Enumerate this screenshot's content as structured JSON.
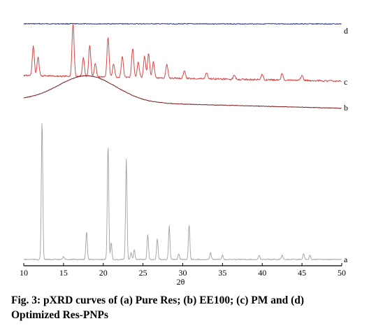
{
  "chart_data": {
    "type": "line",
    "title": "",
    "xlabel": "2θ",
    "ylabel": "",
    "xlim": [
      10,
      50
    ],
    "xticks": [
      10,
      15,
      20,
      25,
      30,
      35,
      40,
      45,
      50
    ],
    "grid": false,
    "legend": "none",
    "series": [
      {
        "name": "d",
        "color": "#27318f",
        "kind": "flat",
        "level": 0.97,
        "peaks": []
      },
      {
        "name": "c",
        "color": "#d24a4a",
        "kind": "crystalline",
        "level": 0.8,
        "peaks": [
          [
            11.2,
            0.55
          ],
          [
            11.8,
            0.35
          ],
          [
            16.2,
            1.0
          ],
          [
            17.5,
            0.35
          ],
          [
            18.3,
            0.6
          ],
          [
            19.0,
            0.25
          ],
          [
            20.6,
            0.75
          ],
          [
            21.3,
            0.25
          ],
          [
            22.4,
            0.4
          ],
          [
            23.7,
            0.55
          ],
          [
            24.4,
            0.3
          ],
          [
            25.2,
            0.4
          ],
          [
            25.7,
            0.45
          ],
          [
            26.3,
            0.3
          ],
          [
            28.0,
            0.25
          ],
          [
            30.2,
            0.15
          ],
          [
            33.0,
            0.12
          ],
          [
            36.5,
            0.08
          ],
          [
            40.0,
            0.1
          ],
          [
            42.5,
            0.12
          ],
          [
            45.0,
            0.1
          ]
        ]
      },
      {
        "name": "b",
        "color": "#7a1f1f",
        "kind": "amorphous",
        "level": 0.66,
        "peaks": [
          [
            18.0,
            1.0
          ]
        ]
      },
      {
        "name": "a",
        "color": "#a0a0a0",
        "kind": "crystalline",
        "level": 0.0,
        "peaks": [
          [
            12.3,
            1.0
          ],
          [
            15.0,
            0.02
          ],
          [
            17.9,
            0.2
          ],
          [
            20.6,
            0.82
          ],
          [
            21.0,
            0.12
          ],
          [
            22.9,
            0.72
          ],
          [
            23.5,
            0.05
          ],
          [
            23.9,
            0.07
          ],
          [
            25.6,
            0.18
          ],
          [
            26.8,
            0.15
          ],
          [
            28.3,
            0.24
          ],
          [
            29.5,
            0.04
          ],
          [
            30.8,
            0.25
          ],
          [
            33.5,
            0.05
          ],
          [
            35.0,
            0.03
          ],
          [
            39.6,
            0.03
          ],
          [
            42.5,
            0.03
          ],
          [
            45.2,
            0.04
          ],
          [
            46.0,
            0.03
          ]
        ]
      }
    ]
  },
  "caption": {
    "line1": "Fig. 3: pXRD curves of (a) Pure Res; (b) EE100; (c) PM and (d)",
    "line2": "Optimized Res-PNPs"
  }
}
